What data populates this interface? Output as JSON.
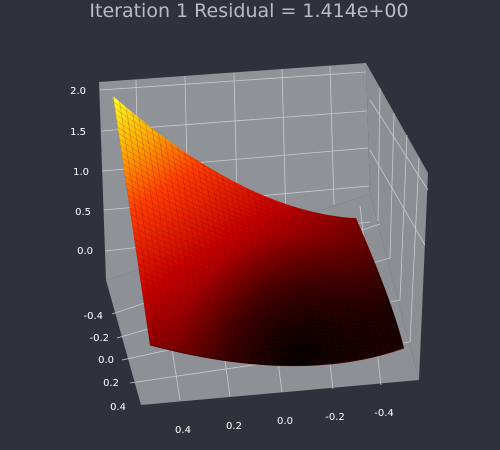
{
  "window": {
    "title": "Iteration   1  Residual = 1.414e+00"
  },
  "chart_data": {
    "type": "surface3d",
    "title": "Iteration   1  Residual = 1.414e+00",
    "iteration": 1,
    "residual": 1.414,
    "colormap": "hot",
    "colors": {
      "figure_background": "#2e333b",
      "axes_panel": "#8f9297",
      "grid": "#c8cacd"
    },
    "x_ticks": [
      "0.4",
      "0.2",
      "0.0",
      "-0.2",
      "-0.4"
    ],
    "y_ticks": [
      "-0.4",
      "-0.2",
      "0.0",
      "0.2",
      "0.4"
    ],
    "z_ticks": [
      "2.0",
      "1.5",
      "1.0",
      "0.5",
      "0.0"
    ],
    "x_range": [
      -0.5,
      0.5
    ],
    "y_range": [
      -0.5,
      0.5
    ],
    "z_range": [
      -0.1,
      2.1
    ],
    "grid": true,
    "surface": {
      "description_points": [
        {
          "x": 0.5,
          "y": -0.5,
          "z": 2.0
        },
        {
          "x": -0.5,
          "y": -0.5,
          "z": 0.0
        },
        {
          "x": 0.5,
          "y": 0.5,
          "z": 0.0
        },
        {
          "x": 0.0,
          "y": 0.0,
          "z": 0.0
        },
        {
          "x": -0.5,
          "y": 0.5,
          "z": 0.0
        }
      ]
    }
  }
}
